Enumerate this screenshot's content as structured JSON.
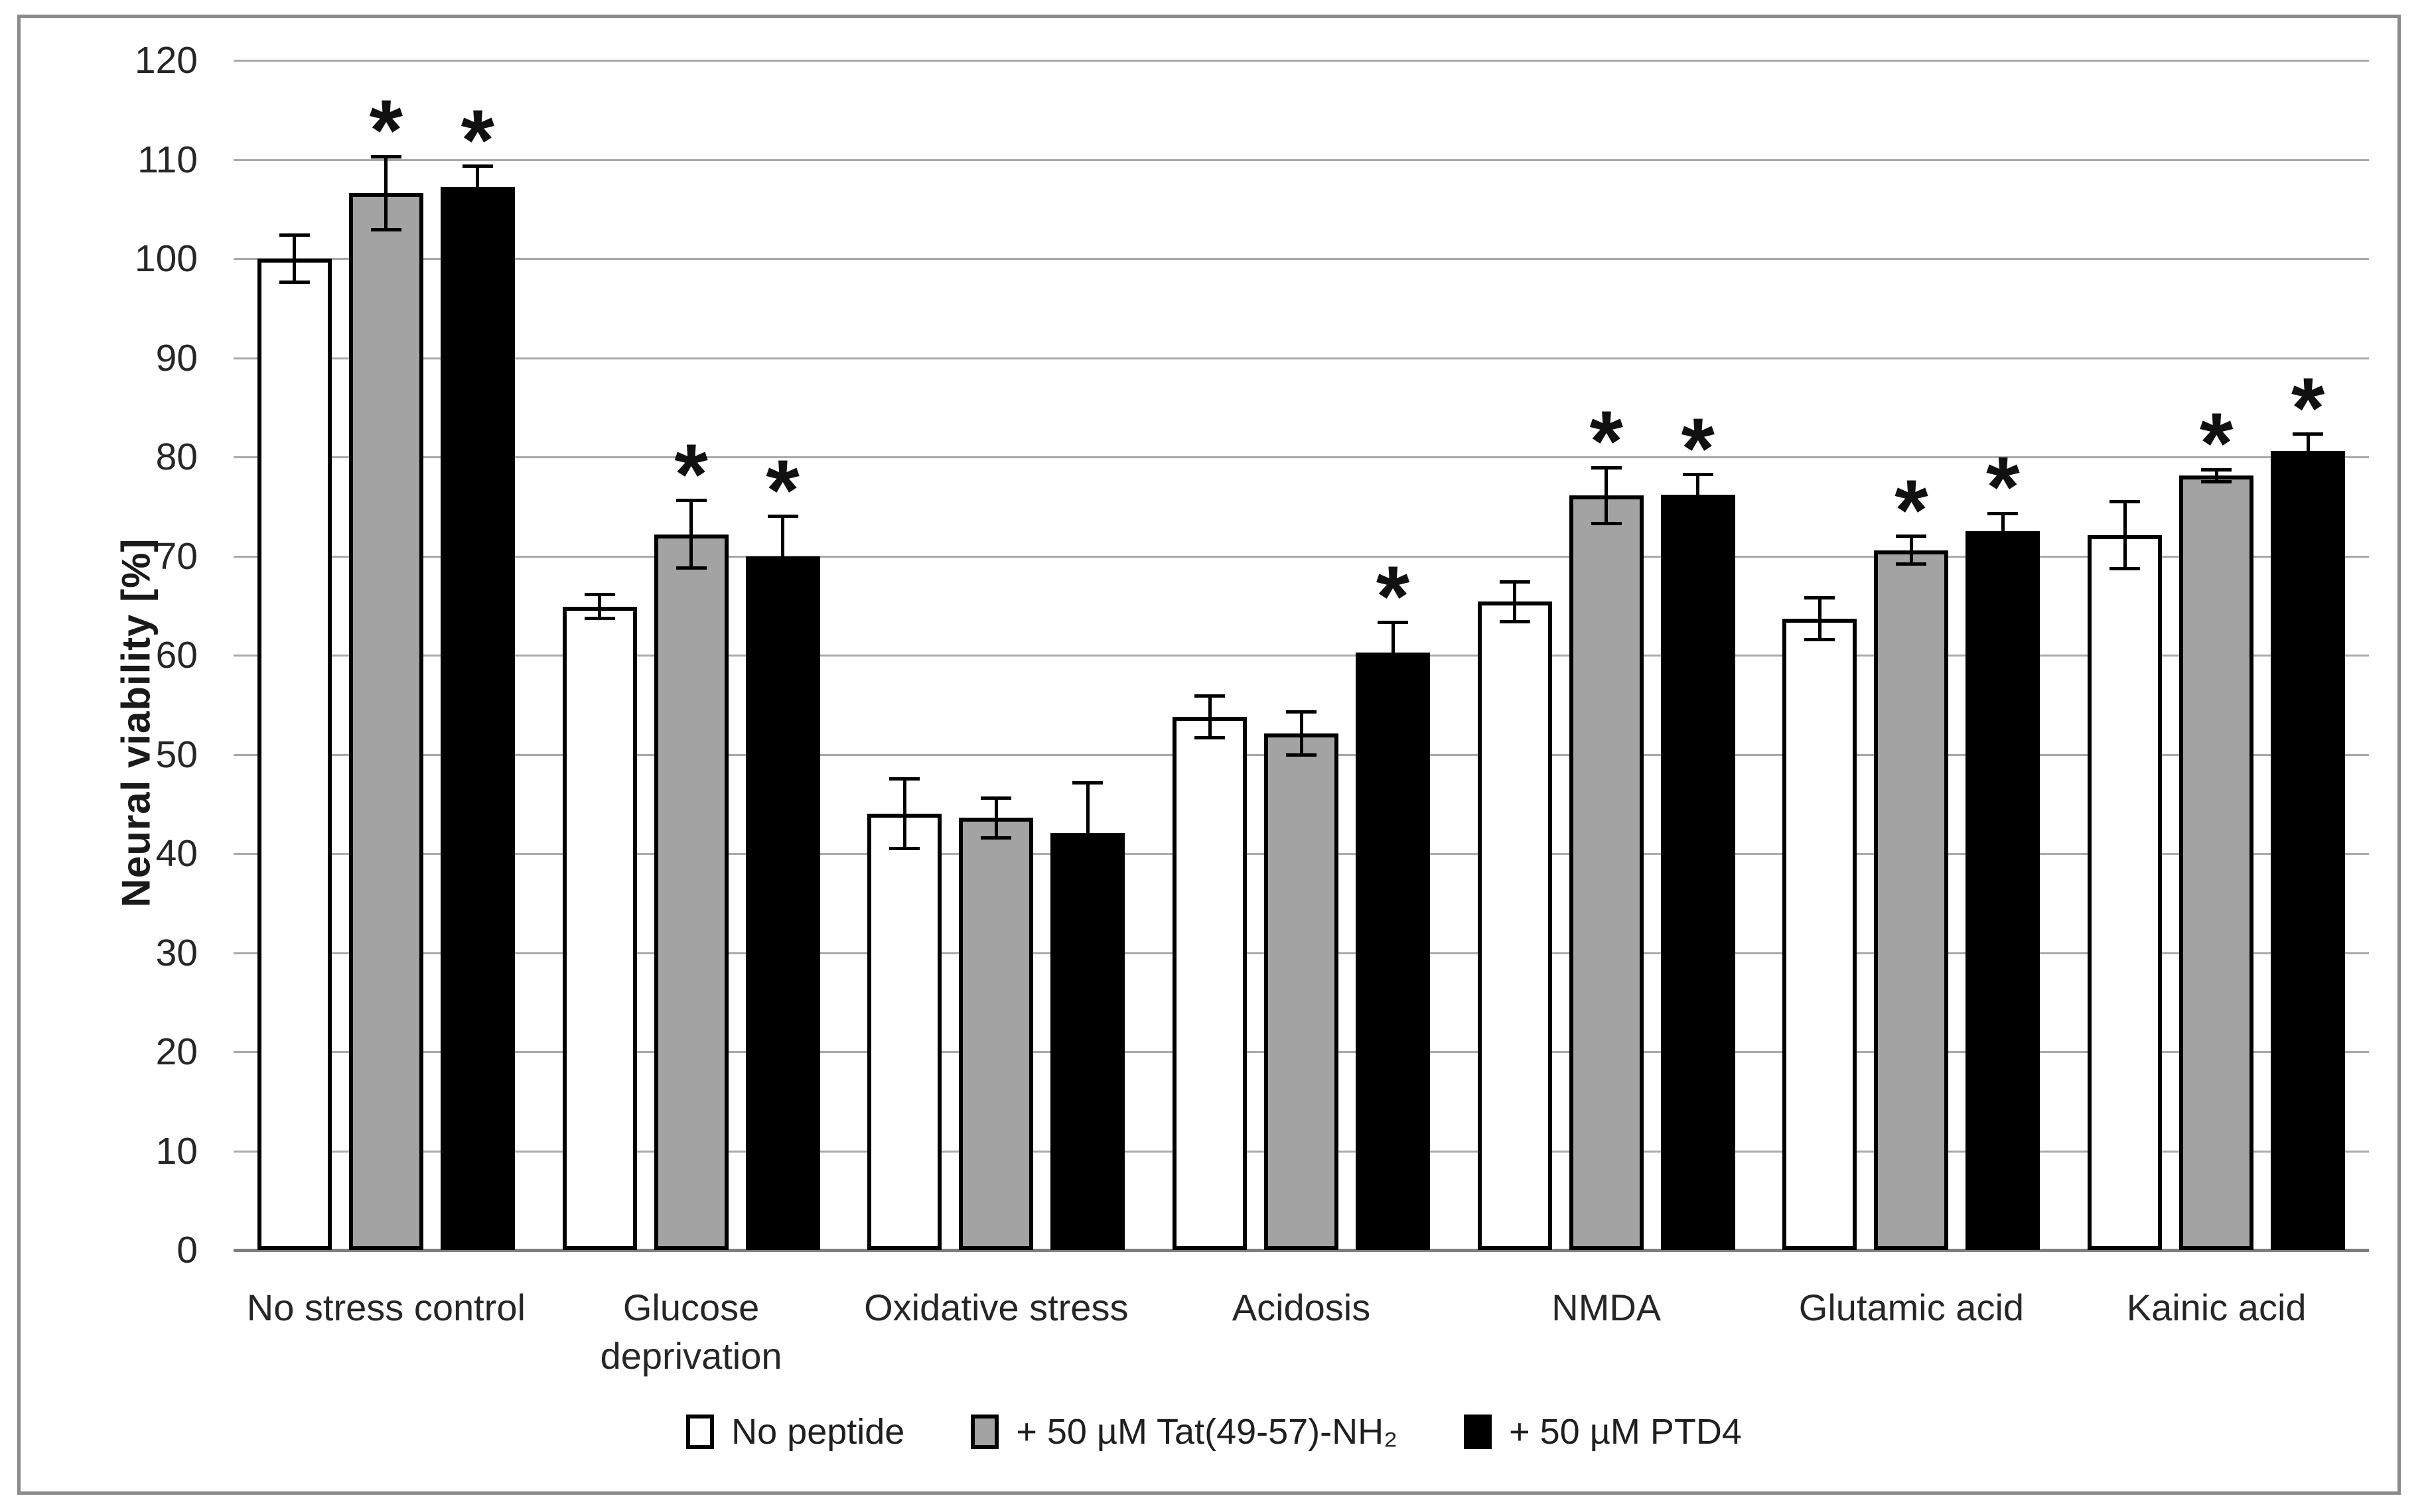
{
  "figure": {
    "y_axis_title": "Neural viability [%]"
  },
  "chart_data": {
    "type": "bar",
    "title": "",
    "xlabel": "",
    "ylabel": "Neural viability [%]",
    "ylim": [
      0,
      120
    ],
    "ytick_step": 10,
    "grid": true,
    "legend_position": "bottom",
    "significance_marker": "*",
    "categories": [
      "No stress control",
      "Glucose deprivation",
      "Oxidative stress",
      "Acidosis",
      "NMDA",
      "Glutamic acid",
      "Kainic acid"
    ],
    "series": [
      {
        "name": "No peptide",
        "fill": "#ffffff",
        "values": [
          100.0,
          64.9,
          44.0,
          53.8,
          65.4,
          63.7,
          72.1
        ],
        "errors": [
          2.4,
          1.2,
          3.5,
          2.1,
          2.0,
          2.1,
          3.4
        ],
        "significant": [
          false,
          false,
          false,
          false,
          false,
          false,
          false
        ]
      },
      {
        "name": "+ 50 µM Tat(49-57)-NH₂",
        "fill": "#a3a3a3",
        "values": [
          106.6,
          72.2,
          43.6,
          52.1,
          76.1,
          70.6,
          78.1
        ],
        "errors": [
          3.7,
          3.4,
          2.0,
          2.2,
          2.8,
          1.4,
          0.6
        ],
        "significant": [
          true,
          true,
          false,
          false,
          true,
          true,
          true
        ]
      },
      {
        "name": "+ 50 µM PTD4",
        "fill": "#000000",
        "values": [
          107.2,
          70.0,
          42.1,
          60.3,
          76.2,
          72.5,
          80.6
        ],
        "errors": [
          2.1,
          4.0,
          5.0,
          3.0,
          2.0,
          1.8,
          1.7
        ],
        "significant": [
          true,
          true,
          false,
          true,
          true,
          true,
          true
        ]
      }
    ]
  }
}
